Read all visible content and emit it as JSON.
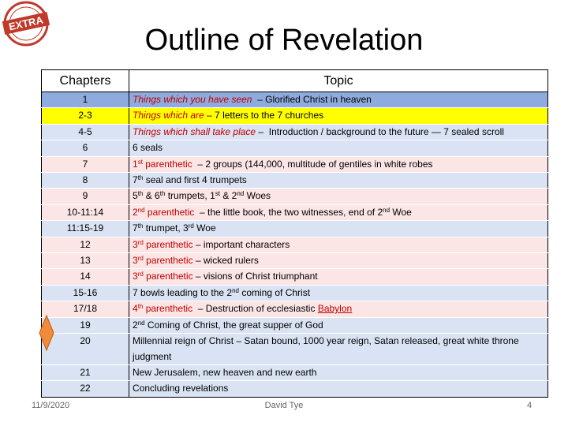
{
  "logo": "EXTRA",
  "title": "Outline of Revelation",
  "table": {
    "headers": [
      "Chapters",
      "Topic"
    ],
    "rows": [
      {
        "chapter": "1",
        "bg": "#8faadc",
        "topic": [
          {
            "text": "Things which you have seen",
            "color": "#c00000",
            "italic": true
          },
          {
            "text": "  – Glorified Christ in heaven"
          }
        ]
      },
      {
        "chapter": "2-3",
        "bg": "#ffff00",
        "topic": [
          {
            "text": "Things which are",
            "color": "#c00000",
            "italic": true
          },
          {
            "text": " – 7 letters to the 7 churches"
          }
        ]
      },
      {
        "chapter": "4-5",
        "bg": "#dae3f3",
        "topic": [
          {
            "text": "Things which shall take place",
            "color": "#c00000",
            "italic": true
          },
          {
            "text": " –  Introduction / background to the future — 7 sealed scroll"
          }
        ]
      },
      {
        "chapter": "6",
        "bg": "#dae3f3",
        "topic": [
          {
            "text": "6 seals"
          }
        ]
      },
      {
        "chapter": "7",
        "bg": "#fbe5e5",
        "topic": [
          {
            "text": "1",
            "color": "#c00000"
          },
          {
            "text": "st",
            "color": "#c00000",
            "sup": true
          },
          {
            "text": " parenthetic",
            "color": "#c00000"
          },
          {
            "text": "  – 2 groups (144,000, multitude of gentiles in white robes"
          }
        ]
      },
      {
        "chapter": "8",
        "bg": "#dae3f3",
        "topic": [
          {
            "text": "7"
          },
          {
            "text": "th",
            "sup": true
          },
          {
            "text": " seal and first 4 trumpets"
          }
        ]
      },
      {
        "chapter": "9",
        "bg": "#fbe5e5",
        "topic": [
          {
            "text": "5"
          },
          {
            "text": "th",
            "sup": true
          },
          {
            "text": " & 6"
          },
          {
            "text": "th",
            "sup": true
          },
          {
            "text": " trumpets, 1"
          },
          {
            "text": "st",
            "sup": true
          },
          {
            "text": " & 2"
          },
          {
            "text": "nd",
            "sup": true
          },
          {
            "text": " Woes"
          }
        ]
      },
      {
        "chapter": "10-11:14",
        "bg": "#fbe5e5",
        "topic": [
          {
            "text": "2",
            "color": "#c00000"
          },
          {
            "text": "nd",
            "color": "#c00000",
            "sup": true
          },
          {
            "text": " parenthetic",
            "color": "#c00000"
          },
          {
            "text": "  – the little book, the two witnesses, end of 2"
          },
          {
            "text": "nd",
            "sup": true
          },
          {
            "text": " Woe"
          }
        ]
      },
      {
        "chapter": "11:15-19",
        "bg": "#dae3f3",
        "topic": [
          {
            "text": "7"
          },
          {
            "text": "th",
            "sup": true
          },
          {
            "text": " trumpet, 3"
          },
          {
            "text": "rd",
            "sup": true
          },
          {
            "text": " Woe"
          }
        ]
      },
      {
        "chapter": "12",
        "bg": "#fbe5e5",
        "topic": [
          {
            "text": "3",
            "color": "#c00000"
          },
          {
            "text": "rd",
            "color": "#c00000",
            "sup": true
          },
          {
            "text": " parenthetic",
            "color": "#c00000"
          },
          {
            "text": " – important characters"
          }
        ]
      },
      {
        "chapter": "13",
        "bg": "#fbe5e5",
        "topic": [
          {
            "text": "3",
            "color": "#c00000"
          },
          {
            "text": "rd",
            "color": "#c00000",
            "sup": true
          },
          {
            "text": " parenthetic",
            "color": "#c00000"
          },
          {
            "text": " – wicked rulers"
          }
        ]
      },
      {
        "chapter": "14",
        "bg": "#fbe5e5",
        "topic": [
          {
            "text": "3",
            "color": "#c00000"
          },
          {
            "text": "rd",
            "color": "#c00000",
            "sup": true
          },
          {
            "text": " parenthetic",
            "color": "#c00000"
          },
          {
            "text": " – visions of Christ triumphant"
          }
        ]
      },
      {
        "chapter": "15-16",
        "bg": "#dae3f3",
        "topic": [
          {
            "text": "7 bowls leading to the 2"
          },
          {
            "text": "nd",
            "sup": true
          },
          {
            "text": " coming of Christ"
          }
        ]
      },
      {
        "chapter": "17/18",
        "bg": "#fbe5e5",
        "topic": [
          {
            "text": "4",
            "color": "#c00000"
          },
          {
            "text": "th",
            "color": "#c00000",
            "sup": true
          },
          {
            "text": " parenthetic",
            "color": "#c00000"
          },
          {
            "text": "  – Destruction of ecclesiastic "
          },
          {
            "text": "Babylon",
            "color": "#c00000",
            "underline": true
          }
        ]
      },
      {
        "chapter": "19",
        "bg": "#dae3f3",
        "topic": [
          {
            "text": "2"
          },
          {
            "text": "nd",
            "sup": true
          },
          {
            "text": " Coming of Christ, the great supper of God"
          }
        ]
      },
      {
        "chapter": "20",
        "bg": "#dae3f3",
        "topic": [
          {
            "text": "Millennial reign of Christ – Satan bound, 1000 year reign, Satan released, great white throne judgment"
          }
        ]
      },
      {
        "chapter": "21",
        "bg": "#dae3f3",
        "topic": [
          {
            "text": "New Jerusalem, new heaven and new earth"
          }
        ]
      },
      {
        "chapter": "22",
        "bg": "#dae3f3",
        "topic": [
          {
            "text": "Concluding revelations"
          }
        ]
      }
    ]
  },
  "footer": {
    "date": "11/9/2020",
    "author": "David Tye",
    "page": "4"
  }
}
